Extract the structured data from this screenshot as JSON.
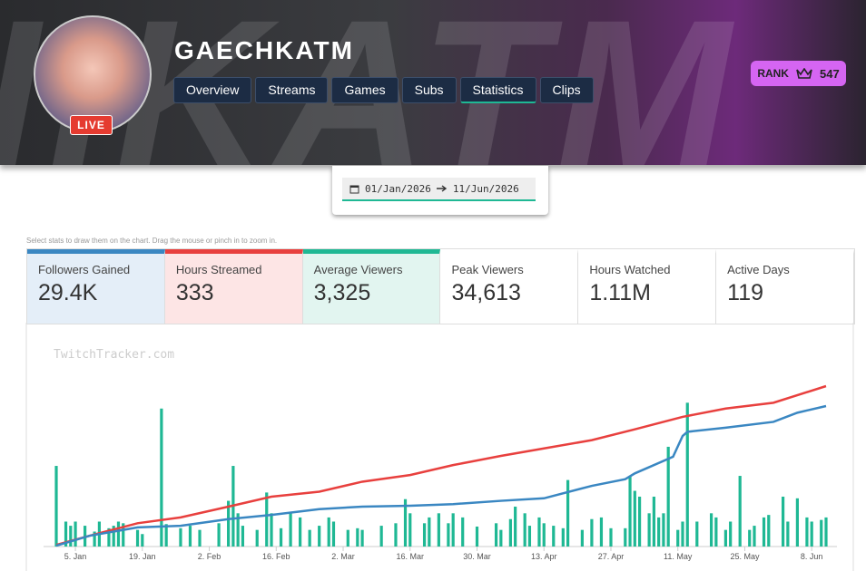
{
  "header": {
    "channel": "GAECHKATM",
    "live": "LIVE",
    "rank_label": "RANK",
    "rank": "547",
    "tabs": [
      "Overview",
      "Streams",
      "Games",
      "Subs",
      "Statistics",
      "Clips"
    ],
    "active_tab": 4
  },
  "date_range": {
    "from": "01/Jan/2026",
    "to": "11/Jun/2026"
  },
  "hint": "Select stats to draw them on the chart. Drag the mouse or pinch in to zoom in.",
  "stats": [
    {
      "label": "Followers Gained",
      "value": "29.4K",
      "color": "#3a87c2",
      "bg": "#e4eef8"
    },
    {
      "label": "Hours Streamed",
      "value": "333",
      "color": "#e8403e",
      "bg": "#fde5e5"
    },
    {
      "label": "Average Viewers",
      "value": "3,325",
      "color": "#1fb894",
      "bg": "#e2f5f0"
    },
    {
      "label": "Peak Viewers",
      "value": "34,613"
    },
    {
      "label": "Hours Watched",
      "value": "1.11M"
    },
    {
      "label": "Active Days",
      "value": "119"
    }
  ],
  "chart_data": {
    "type": "bar",
    "watermark": "TwitchTracker.com",
    "xlim": [
      0,
      161
    ],
    "xticks": [
      {
        "value": 4,
        "label": "5. Jan"
      },
      {
        "value": 18,
        "label": "19. Jan"
      },
      {
        "value": 32,
        "label": "2. Feb"
      },
      {
        "value": 46,
        "label": "16. Feb"
      },
      {
        "value": 60,
        "label": "2. Mar"
      },
      {
        "value": 74,
        "label": "16. Mar"
      },
      {
        "value": 88,
        "label": "30. Mar"
      },
      {
        "value": 102,
        "label": "13. Apr"
      },
      {
        "value": 116,
        "label": "27. Apr"
      },
      {
        "value": 130,
        "label": "11. May"
      },
      {
        "value": 144,
        "label": "25. May"
      },
      {
        "value": 158,
        "label": "8. Jun"
      }
    ],
    "series": [
      {
        "type": "bar",
        "color": "#1fb894",
        "x": [
          0,
          2,
          3,
          4,
          6,
          8,
          9,
          11,
          12,
          13,
          14,
          17,
          18,
          22,
          23,
          26,
          28,
          30,
          34,
          36,
          37,
          38,
          39,
          42,
          44,
          45,
          47,
          49,
          51,
          53,
          55,
          57,
          58,
          61,
          63,
          64,
          68,
          71,
          73,
          74,
          77,
          78,
          80,
          82,
          83,
          85,
          88,
          92,
          93,
          95,
          96,
          98,
          99,
          101,
          102,
          104,
          106,
          107,
          110,
          112,
          114,
          116,
          119,
          120,
          121,
          122,
          124,
          125,
          126,
          127,
          128,
          130,
          131,
          132,
          134,
          137,
          138,
          140,
          141,
          143,
          145,
          146,
          148,
          149,
          152,
          153,
          155,
          157,
          158,
          160,
          161
        ],
        "values": [
          97,
          30,
          25,
          30,
          25,
          18,
          30,
          22,
          25,
          30,
          28,
          20,
          15,
          166,
          27,
          22,
          25,
          20,
          28,
          55,
          97,
          40,
          25,
          20,
          65,
          40,
          22,
          40,
          35,
          20,
          25,
          35,
          30,
          20,
          22,
          20,
          25,
          28,
          57,
          40,
          28,
          35,
          40,
          28,
          40,
          35,
          24,
          28,
          20,
          33,
          48,
          40,
          25,
          35,
          28,
          25,
          22,
          80,
          20,
          33,
          35,
          22,
          22,
          85,
          67,
          60,
          40,
          60,
          35,
          40,
          120,
          20,
          30,
          173,
          30,
          40,
          35,
          20,
          30,
          85,
          20,
          25,
          35,
          38,
          60,
          30,
          58,
          35,
          30,
          32,
          35
        ]
      },
      {
        "type": "line",
        "color": "#e8403e",
        "x": [
          0,
          7,
          17,
          26,
          36,
          45,
          55,
          64,
          74,
          83,
          93,
          102,
          112,
          121,
          131,
          140,
          150,
          161
        ],
        "values": [
          2,
          13,
          28,
          35,
          48,
          60,
          66,
          78,
          86,
          98,
          109,
          118,
          128,
          141,
          156,
          166,
          173,
          193
        ]
      },
      {
        "type": "line",
        "color": "#3a87c2",
        "x": [
          0,
          7,
          17,
          26,
          36,
          45,
          55,
          64,
          74,
          83,
          93,
          102,
          112,
          119,
          121,
          129,
          131,
          132,
          140,
          150,
          155,
          161
        ],
        "values": [
          1,
          13,
          23,
          25,
          33,
          38,
          45,
          48,
          49,
          51,
          55,
          58,
          73,
          81,
          88,
          108,
          133,
          138,
          143,
          150,
          161,
          169
        ]
      }
    ]
  }
}
